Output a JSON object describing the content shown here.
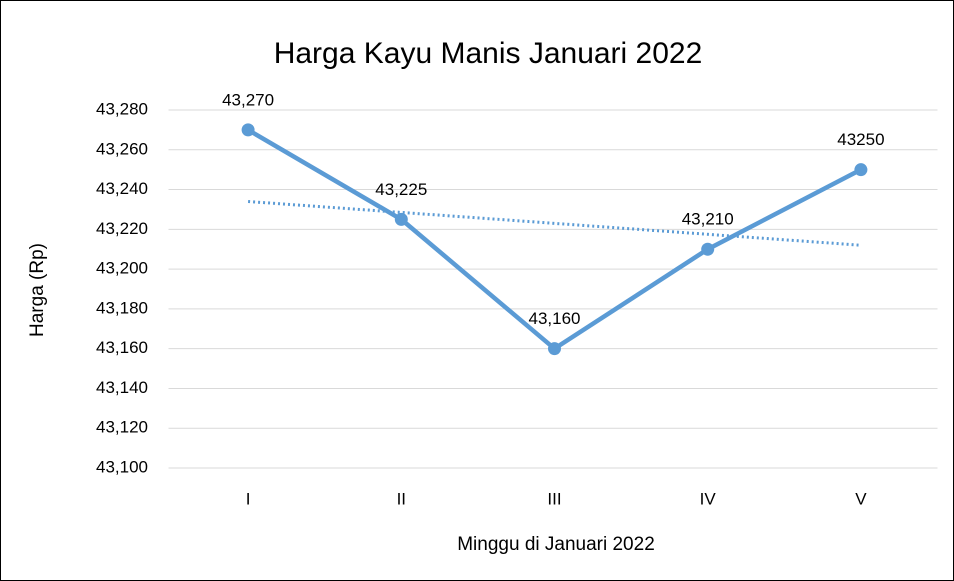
{
  "chart_data": {
    "type": "line",
    "title": "Harga Kayu Manis Januari 2022",
    "x_label": "Minggu di Januari 2022",
    "y_label": "Harga (Rp)",
    "categories": [
      "I",
      "II",
      "III",
      "IV",
      "V"
    ],
    "values": [
      43270,
      43225,
      43160,
      43210,
      43250
    ],
    "value_labels": [
      "43,270",
      "43,225",
      "43,160",
      "43,210",
      "43250"
    ],
    "color": "#5b9bd5",
    "trendline": "linear",
    "ylim": [
      43100,
      43280
    ],
    "yticks": [
      {
        "value": 43100,
        "label": "43,100"
      },
      {
        "value": 43120,
        "label": "43,120"
      },
      {
        "value": 43140,
        "label": "43,140"
      },
      {
        "value": 43160,
        "label": "43,160"
      },
      {
        "value": 43180,
        "label": "43,180"
      },
      {
        "value": 43200,
        "label": "43,200"
      },
      {
        "value": 43220,
        "label": "43,220"
      },
      {
        "value": 43240,
        "label": "43,240"
      },
      {
        "value": 43260,
        "label": "43,260"
      },
      {
        "value": 43280,
        "label": "43,280"
      }
    ],
    "grid": true
  }
}
